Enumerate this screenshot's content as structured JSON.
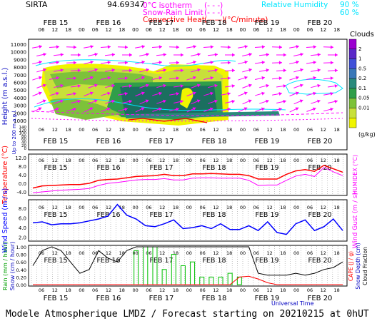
{
  "header": {
    "station": "SIRTA",
    "coord": "94.69347",
    "legend_lines": [
      {
        "text": "0°C isotherm",
        "sym": "(- - -)",
        "color": "#ff00ff"
      },
      {
        "text": "Snow-Rain Limit",
        "sym": "(- - -)",
        "color": "#ff00ff"
      },
      {
        "text": "Convective Heat.",
        "sym": "(——)",
        "unit": "(°C/minute)",
        "color": "#ff0000"
      }
    ],
    "rh_label": "Relative Humidity",
    "rh_values": [
      "90 %",
      "60 %"
    ],
    "rh_color": "#00e5ff"
  },
  "footer": "Modele Atmospherique LMDZ / Forecast starting on 20210215 at 0hUT",
  "x_axis_title": "Universal Time",
  "colors": {
    "axis_blue": "#0000c0",
    "temp_red": "#ff0000",
    "humidex": "#ff00ff",
    "wind": "#0000ff",
    "cape": "#ff0000",
    "cloud_dark": "#1b6f5f"
  },
  "chart_data": [
    {
      "type": "heatmap",
      "name": "Clouds (time-height)",
      "ylabel": "Height (m a.s.l.)",
      "ylabel2": "Up to 200 m a.g.l.",
      "yticks_upper": [
        "11000",
        "10000",
        "9000",
        "8000",
        "7000",
        "6000",
        "5000",
        "4000",
        "3000",
        "2000",
        "1000"
      ],
      "yticks_lower": [
        "140",
        "120",
        "100",
        "80",
        "60",
        "40",
        "20",
        "0"
      ],
      "top_hours": [
        "06",
        "12",
        "18",
        "00",
        "06",
        "12",
        "18",
        "00",
        "06",
        "12",
        "18",
        "00",
        "06",
        "12",
        "18",
        "00",
        "06",
        "12",
        "18",
        "00",
        "06",
        "12",
        "18"
      ],
      "top_days": [
        "FEB 15",
        "FEB 16",
        "FEB 17",
        "FEB 18",
        "FEB 19",
        "FEB 20"
      ],
      "colorbar": {
        "title": "Clouds",
        "unit": "(g/kg)",
        "ticks": [
          "2",
          "1",
          "0.5",
          "0.2",
          "0.1",
          "0.05",
          "0.01"
        ],
        "colors": [
          "#9b00d0",
          "#5a28c8",
          "#4050d8",
          "#3a78b8",
          "#2a8a7c",
          "#2f9e4a",
          "#7dc23a",
          "#c8e03a",
          "#f0f500"
        ]
      }
    },
    {
      "type": "line",
      "name": "Temperature",
      "ylabel": "Temperature (°C)",
      "ylabel_right": "HUMIDEX (°C)",
      "yticks": [
        "12.0",
        "8.0",
        "4.0",
        "0.0",
        "-4.0"
      ],
      "ylim": [
        -5,
        13
      ],
      "series": [
        {
          "name": "Temperature",
          "values": [
            -2.2,
            -1.2,
            -1.0,
            -0.8,
            -0.6,
            -0.6,
            0.0,
            1.4,
            1.8,
            2.0,
            2.6,
            3.2,
            3.4,
            3.6,
            4.2,
            3.6,
            3.6,
            4.4,
            4.4,
            4.6,
            4.4,
            4.2,
            4.2,
            3.6,
            2.0,
            2.0,
            2.0,
            4.2,
            5.8,
            6.4,
            5.6,
            8.4,
            6.8,
            5.2
          ]
        },
        {
          "name": "HUMIDEX",
          "values": [
            -4.4,
            -4.0,
            -3.6,
            -3.2,
            -3.0,
            -2.8,
            -2.4,
            -1.0,
            0.0,
            0.4,
            1.0,
            1.6,
            1.8,
            1.8,
            2.2,
            1.6,
            1.6,
            2.4,
            2.6,
            2.6,
            2.4,
            2.4,
            2.4,
            1.4,
            -1.0,
            -0.8,
            -0.8,
            1.4,
            3.4,
            4.2,
            3.2,
            7.4,
            5.4,
            3.6
          ]
        }
      ]
    },
    {
      "type": "line",
      "name": "Wind",
      "ylabel": "Wind Speed (m / s)",
      "ylabel_right": "Wind Gust (m / s)",
      "yticks": [
        "8.0",
        "6.0",
        "4.0",
        "2.0"
      ],
      "ylim": [
        1.5,
        9.5
      ],
      "series": [
        {
          "name": "Wind Speed",
          "values": [
            5.0,
            5.2,
            4.6,
            4.8,
            4.8,
            5.0,
            5.4,
            5.8,
            6.4,
            8.8,
            6.6,
            5.8,
            4.4,
            4.2,
            4.8,
            5.6,
            3.8,
            4.0,
            4.4,
            3.8,
            4.8,
            3.6,
            3.6,
            4.4,
            3.4,
            5.2,
            3.0,
            2.6,
            4.8,
            5.6,
            3.4,
            4.2,
            5.8,
            3.4
          ]
        }
      ]
    },
    {
      "type": "bar",
      "name": "Precipitation",
      "ylabel_left": "Rain (mm / hour)",
      "ylabel_left2": "Snow (cm / hour)",
      "ylabel_right": "CAPE (J / g)",
      "ylabel_right2": "Snow Depth (cm)",
      "ylabel_right3": "Cloud Fraction",
      "yticks": [
        "1.00",
        "0.80",
        "0.60",
        "0.40",
        "0.20",
        "0.00"
      ],
      "ylim": [
        0,
        1.0
      ],
      "series": [
        {
          "name": "Cloud Fraction",
          "values": [
            0.5,
            0.9,
            1.0,
            0.9,
            0.6,
            0.3,
            0.4,
            0.9,
            0.7,
            0.6,
            0.9,
            1.0,
            1.0,
            1.0,
            1.0,
            1.0,
            1.0,
            1.0,
            1.0,
            1.0,
            1.0,
            1.0,
            1.0,
            1.0,
            0.3,
            0.25,
            0.25,
            0.25,
            0.3,
            0.25,
            0.3,
            0.4,
            0.45,
            0.6
          ]
        },
        {
          "name": "Rain",
          "values": [
            0,
            0,
            0,
            0,
            0,
            0,
            0,
            0,
            0,
            0,
            0,
            0.9,
            1.0,
            1.0,
            0.4,
            0.8,
            0.5,
            0.6,
            0.2,
            0.2,
            0.2,
            0.3,
            0.2,
            0,
            0,
            0,
            0,
            0,
            0,
            0,
            0,
            0,
            0,
            0
          ]
        },
        {
          "name": "CAPE",
          "values": [
            0,
            0,
            0,
            0,
            0,
            0,
            0,
            0,
            0,
            0,
            0,
            0,
            0,
            0,
            0,
            0,
            0,
            0,
            0,
            0,
            0,
            0,
            0.2,
            0.22,
            0.15,
            0.05,
            0,
            0,
            0,
            0,
            0,
            0,
            0,
            0
          ]
        }
      ]
    }
  ]
}
